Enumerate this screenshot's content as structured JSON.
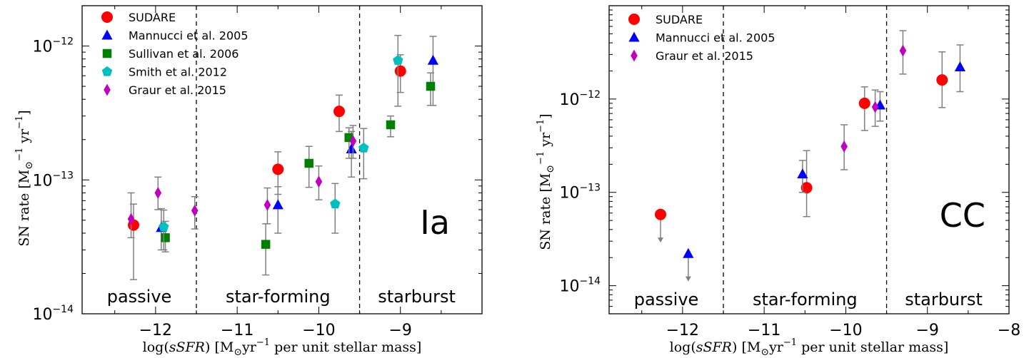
{
  "chart_data": [
    {
      "type": "scatter",
      "panel_label": "Ia",
      "xlabel": "log(sSFR)  [M⊙yr⁻¹ per unit stellar mass]",
      "ylabel": "SN rate  [M⊙⁻¹ yr⁻¹]",
      "xlim": [
        -12.9,
        -8.0
      ],
      "ylim": [
        1e-14,
        2e-12
      ],
      "yscale": "log",
      "x_ticks": [
        -12,
        -11,
        -10,
        -9
      ],
      "x_tick_labels": [
        "−12",
        "−11",
        "−10",
        "−9"
      ],
      "y_ticks": [
        1e-14,
        1e-13,
        1e-12
      ],
      "y_tick_labels": [
        "10",
        "10",
        "10"
      ],
      "y_tick_exponents": [
        "−14",
        "−13",
        "−12"
      ],
      "dividers": [
        -11.5,
        -9.5
      ],
      "regions": [
        {
          "label": "passive",
          "x": -12.2
        },
        {
          "label": "star-forming",
          "x": -10.5
        },
        {
          "label": "starburst",
          "x": -8.8
        }
      ],
      "legend_position": "top-left",
      "series": [
        {
          "name": "SUDARE",
          "marker": "circle",
          "color": "#ff0000",
          "points": [
            {
              "x": -12.27,
              "y": 4.6e-14,
              "lo": 1.8e-14,
              "hi": 6.6e-14
            },
            {
              "x": -10.5,
              "y": 1.2e-13,
              "lo": 7.8e-14,
              "hi": 1.62e-13
            },
            {
              "x": -9.75,
              "y": 3.25e-13,
              "lo": 2.3e-13,
              "hi": 4.3e-13
            },
            {
              "x": -9.0,
              "y": 6.5e-13,
              "lo": 4.5e-13,
              "hi": 8.6e-13
            }
          ]
        },
        {
          "name": "Mannucci et al. 2005",
          "marker": "triangle",
          "color": "#0000ff",
          "points": [
            {
              "x": -11.93,
              "y": 4.4e-14,
              "lo": 3e-14,
              "hi": 6.1e-14
            },
            {
              "x": -10.5,
              "y": 6.5e-14,
              "lo": 4e-14,
              "hi": 8.9e-14
            },
            {
              "x": -9.6,
              "y": 1.7e-13,
              "lo": 1.05e-13,
              "hi": 2.3e-13
            },
            {
              "x": -8.6,
              "y": 7.8e-13,
              "lo": 3.6e-13,
              "hi": 1.18e-12
            }
          ]
        },
        {
          "name": "Sullivan et al. 2006",
          "marker": "square",
          "color": "#008000",
          "points": [
            {
              "x": -11.88,
              "y": 3.7e-14,
              "lo": 2.9e-14,
              "hi": 4.9e-14
            },
            {
              "x": -10.65,
              "y": 3.3e-14,
              "lo": 1.95e-14,
              "hi": 4.7e-14
            },
            {
              "x": -10.12,
              "y": 1.33e-13,
              "lo": 8.8e-14,
              "hi": 1.78e-13
            },
            {
              "x": -9.63,
              "y": 2.07e-13,
              "lo": 1.45e-13,
              "hi": 2.45e-13
            },
            {
              "x": -9.12,
              "y": 2.58e-13,
              "lo": 2.1e-13,
              "hi": 3e-13
            },
            {
              "x": -8.63,
              "y": 5e-13,
              "lo": 3.6e-13,
              "hi": 6.3e-13
            }
          ]
        },
        {
          "name": "Smith et al. 2012",
          "marker": "pentagon",
          "color": "#00bfbf",
          "points": [
            {
              "x": -11.9,
              "y": 4.45e-14,
              "lo": 3e-14,
              "hi": 5.95e-14
            },
            {
              "x": -9.8,
              "y": 6.6e-14,
              "lo": 4e-14,
              "hi": 9.4e-14
            },
            {
              "x": -9.45,
              "y": 1.73e-13,
              "lo": 1.02e-13,
              "hi": 2.42e-13
            },
            {
              "x": -9.03,
              "y": 7.8e-13,
              "lo": 3.55e-13,
              "hi": 1.2e-12
            }
          ]
        },
        {
          "name": "Graur et al. 2015",
          "marker": "diamond",
          "color": "#bf00bf",
          "points": [
            {
              "x": -12.3,
              "y": 5.1e-14,
              "lo": 3.7e-14,
              "hi": 8e-14
            },
            {
              "x": -11.97,
              "y": 8e-14,
              "lo": 6e-14,
              "hi": 1.05e-13
            },
            {
              "x": -11.52,
              "y": 5.9e-14,
              "lo": 4.3e-14,
              "hi": 7.5e-14
            },
            {
              "x": -10.63,
              "y": 6.5e-14,
              "lo": 4.7e-14,
              "hi": 8.7e-14
            },
            {
              "x": -10.0,
              "y": 9.7e-14,
              "lo": 7.1e-14,
              "hi": 1.27e-13
            },
            {
              "x": -9.58,
              "y": 1.95e-13,
              "lo": 1.45e-13,
              "hi": 2.55e-13
            }
          ]
        }
      ]
    },
    {
      "type": "scatter",
      "panel_label": "CC",
      "xlabel": "log(sSFR)  [M⊙yr⁻¹ per unit stellar mass]",
      "ylabel": "SN rate  [M⊙⁻¹ yr⁻¹]",
      "xlim": [
        -12.9,
        -8.0
      ],
      "ylim": [
        5e-15,
        1e-11
      ],
      "yscale": "log",
      "x_ticks": [
        -12,
        -11,
        -10,
        -9,
        -8
      ],
      "x_tick_labels": [
        "−12",
        "−11",
        "−10",
        "−9",
        "−8"
      ],
      "y_ticks": [
        1e-14,
        1e-13,
        1e-12
      ],
      "y_tick_labels": [
        "10",
        "10",
        "10"
      ],
      "y_tick_exponents": [
        "−14",
        "−13",
        "−12"
      ],
      "dividers": [
        -11.5,
        -9.5
      ],
      "regions": [
        {
          "label": "passive",
          "x": -12.2
        },
        {
          "label": "star-forming",
          "x": -10.5
        },
        {
          "label": "starburst",
          "x": -8.8
        }
      ],
      "legend_position": "top-left",
      "series": [
        {
          "name": "SUDARE",
          "marker": "circle",
          "color": "#ff0000",
          "points": [
            {
              "x": -12.27,
              "y": 5.8e-14,
              "upper_limit": true,
              "arrow_to": 3e-14
            },
            {
              "x": -10.48,
              "y": 1.12e-13,
              "lo": 5.5e-14,
              "hi": 2.8e-13
            },
            {
              "x": -9.77,
              "y": 9e-13,
              "lo": 4.6e-13,
              "hi": 1.35e-12
            },
            {
              "x": -8.82,
              "y": 1.6e-12,
              "lo": 8.1e-13,
              "hi": 3.2e-12
            }
          ]
        },
        {
          "name": "Mannucci et al. 2005",
          "marker": "triangle",
          "color": "#0000ff",
          "points": [
            {
              "x": -11.93,
              "y": 2.2e-14,
              "upper_limit": true,
              "arrow_to": 1.15e-14
            },
            {
              "x": -10.53,
              "y": 1.57e-13,
              "lo": 1e-13,
              "hi": 2.2e-13
            },
            {
              "x": -9.58,
              "y": 8.6e-13,
              "lo": 5.8e-13,
              "hi": 1.2e-12
            },
            {
              "x": -8.6,
              "y": 2.2e-12,
              "lo": 1.2e-12,
              "hi": 3.8e-12
            }
          ]
        },
        {
          "name": "Graur et al. 2015",
          "marker": "diamond",
          "color": "#bf00bf",
          "points": [
            {
              "x": -10.02,
              "y": 3.1e-13,
              "lo": 1.75e-13,
              "hi": 5.3e-13
            },
            {
              "x": -9.64,
              "y": 8.2e-13,
              "lo": 5.1e-13,
              "hi": 1.25e-12
            },
            {
              "x": -9.3,
              "y": 3.3e-12,
              "lo": 1.85e-12,
              "hi": 5.4e-12
            }
          ]
        }
      ]
    }
  ]
}
